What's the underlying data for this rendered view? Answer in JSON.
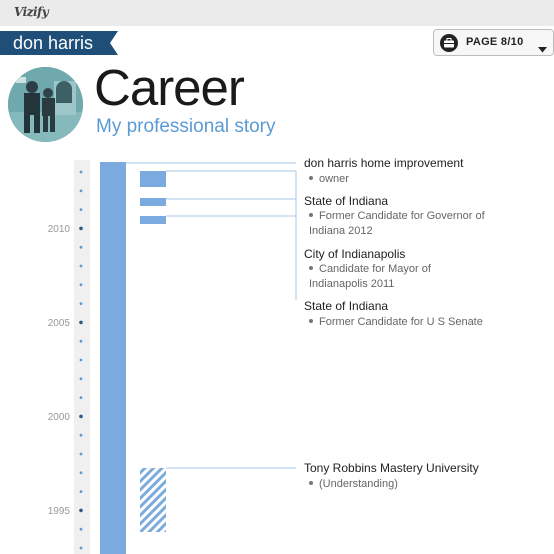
{
  "app": {
    "logo": "Vizify"
  },
  "profile": {
    "name": "don harris"
  },
  "pager": {
    "label": "PAGE 8/10"
  },
  "header": {
    "title": "Career",
    "subtitle": "My professional story"
  },
  "timeline": {
    "year_labels": [
      "2010",
      "2005",
      "2000",
      "1995"
    ],
    "entries": [
      {
        "org": "don harris home improvement",
        "roles": [
          "owner"
        ]
      },
      {
        "org": "State of Indiana",
        "roles": [
          "Former Candidate for Governor of",
          "Indiana 2012"
        ]
      },
      {
        "org": "City of Indianapolis",
        "roles": [
          "Candidate for Mayor of",
          "Indianapolis 2011"
        ]
      },
      {
        "org": "State of Indiana",
        "roles": [
          "Former Candidate for U S Senate"
        ]
      },
      {
        "org": "Tony Robbins Mastery University",
        "roles": [
          "(Understanding)"
        ]
      }
    ]
  },
  "colors": {
    "accent": "#5b9bd5",
    "bar": "#7aaade",
    "name_tab": "#1f4e79"
  }
}
